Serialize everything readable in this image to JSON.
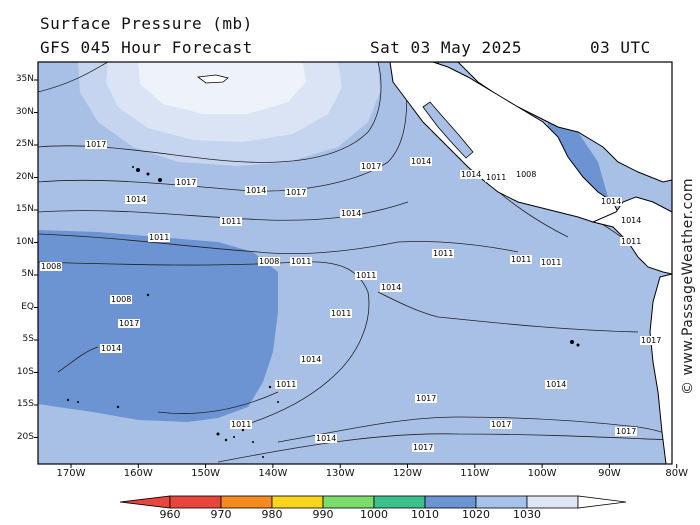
{
  "header": {
    "title": "Surface Pressure (mb)",
    "subtitle": "GFS 045 Hour Forecast",
    "date": "Sat 03 May 2025",
    "time": "03 UTC"
  },
  "credit": "© www.PassageWeather.com",
  "lat_ticks": [
    "35N",
    "30N",
    "25N",
    "20N",
    "15N",
    "10N",
    "5N",
    "EQ",
    "5S",
    "10S",
    "15S",
    "20S"
  ],
  "lon_ticks": [
    "170W",
    "160W",
    "150W",
    "140W",
    "130W",
    "120W",
    "110W",
    "100W",
    "90W",
    "80W"
  ],
  "colorbar": {
    "labels": [
      "960",
      "970",
      "980",
      "990",
      "1000",
      "1010",
      "1020",
      "1030"
    ],
    "colors": [
      "#e8453c",
      "#f58a1f",
      "#f7d51d",
      "#7bdc6a",
      "#3cc08e",
      "#6c93d2",
      "#a7c2e8",
      "#dfe7f5"
    ]
  },
  "colors": {
    "ocean_mid": "#a9c0e6",
    "ocean_low": "#6c93d2",
    "high_1": "#c5d5ef",
    "high_2": "#dbe4f4",
    "high_3": "#eef2fa",
    "land": "#ffffff"
  },
  "isobar_labels": [
    "1017",
    "1014",
    "1011",
    "1008",
    "1017",
    "1014",
    "1011",
    "1008",
    "1017",
    "1014",
    "1011",
    "1008",
    "1017",
    "1014",
    "1011",
    "1017",
    "1014",
    "1011",
    "1014",
    "1017",
    "1014",
    "1017",
    "1011",
    "1014",
    "1011",
    "1017",
    "1014",
    "1011",
    "1008",
    "1011",
    "1011",
    "1014",
    "1011",
    "1017",
    "1014",
    "1011",
    "1014",
    "1017"
  ]
}
